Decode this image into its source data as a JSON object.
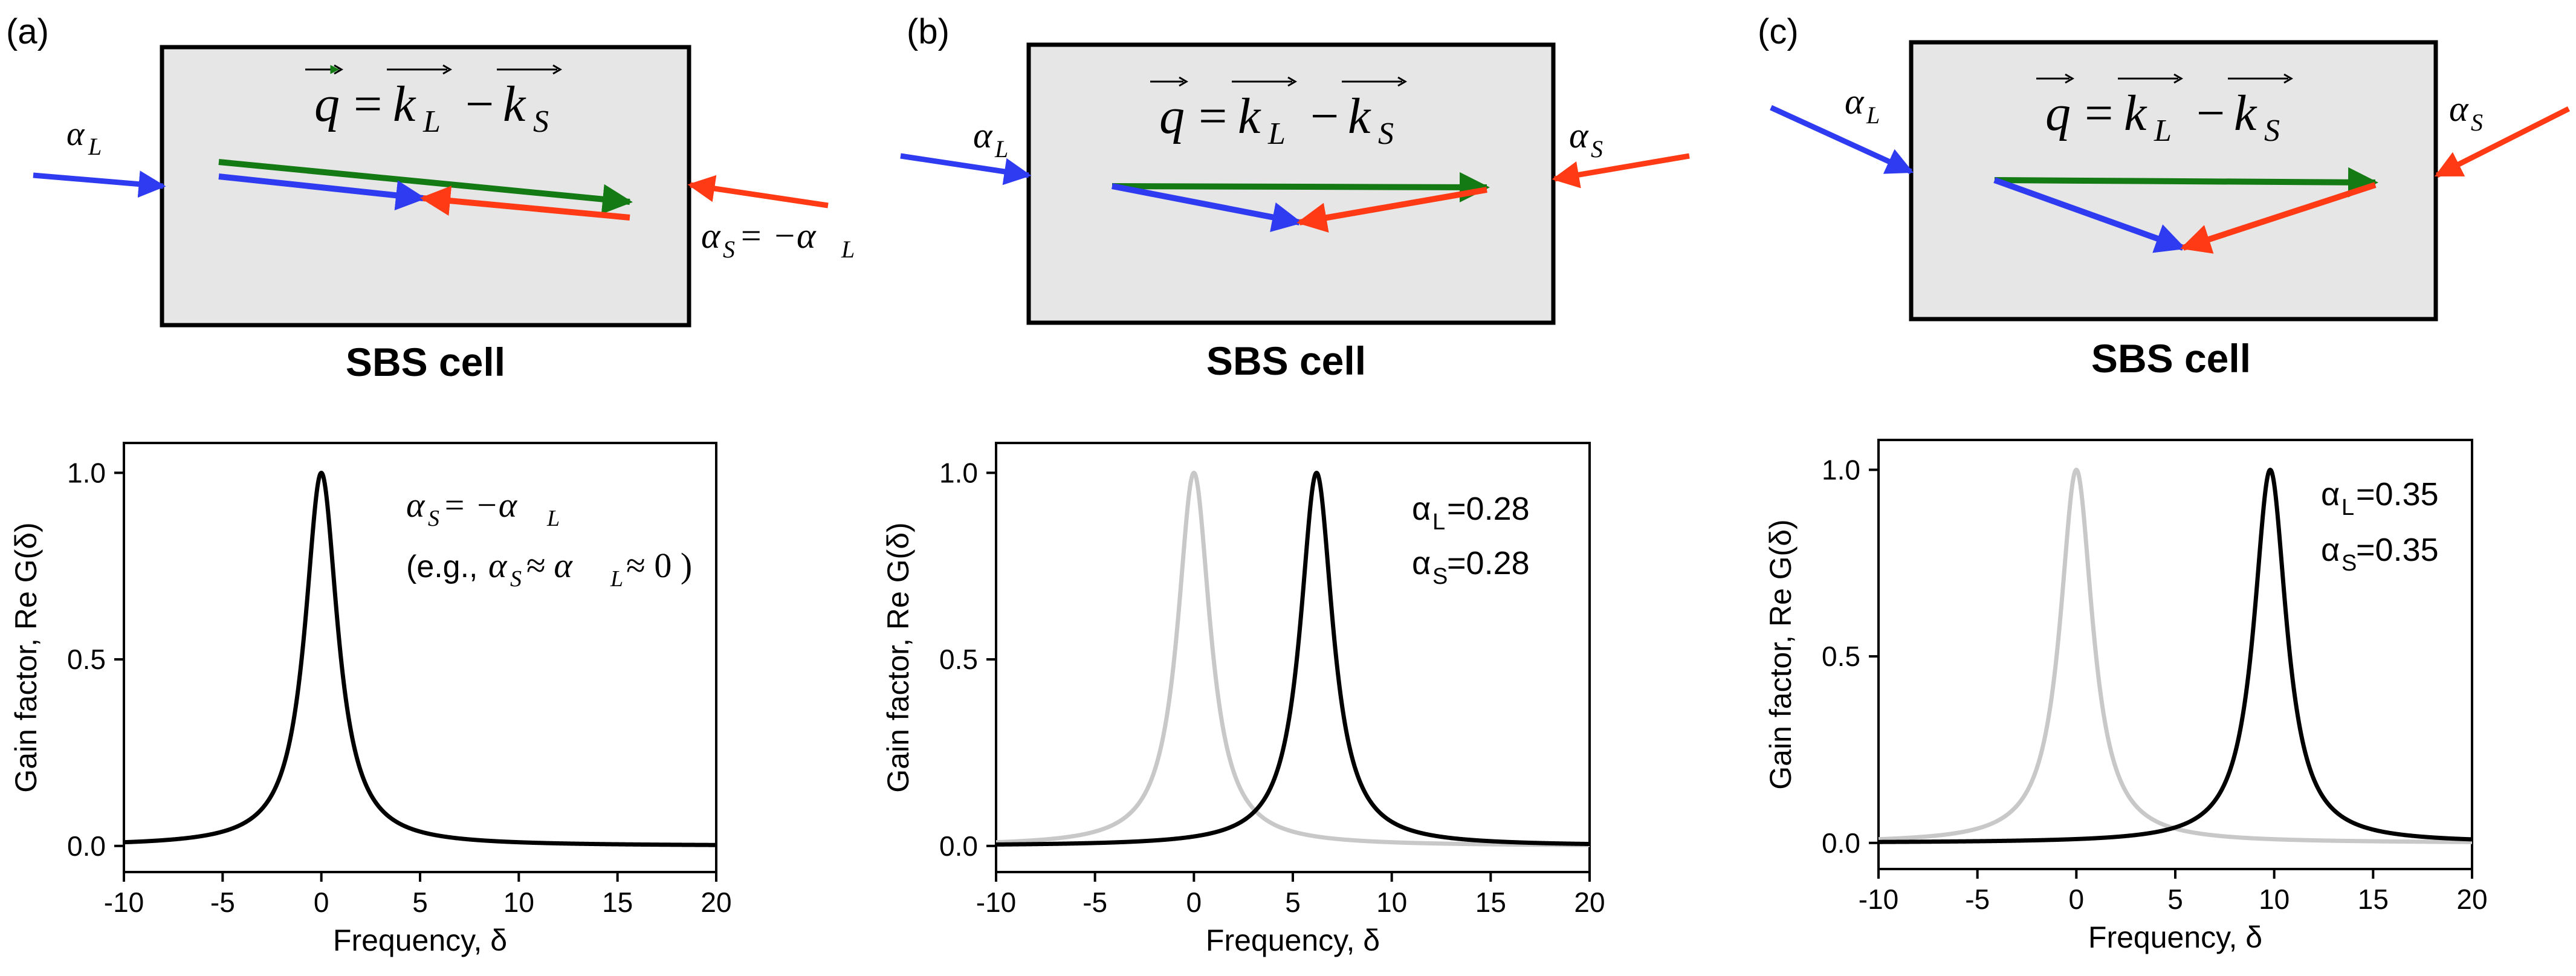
{
  "figure": {
    "colors": {
      "laser": "#2f3bf0",
      "stokes": "#ff3a14",
      "acoustic": "#147a14",
      "cell_fill": "#e6e6e6",
      "curve_reference": "#c8c8c8",
      "curve_main": "#000000"
    },
    "shared": {
      "cell_caption": "SBS cell",
      "equation": {
        "q": "q",
        "k": "k",
        "sub_L": "L",
        "sub_S": "S",
        "equals": "=",
        "minus": "−"
      },
      "alpha_symbol": "α",
      "ylabel": "Gain factor, Re G(δ)",
      "xlabel": "Frequency, δ"
    },
    "panels": [
      {
        "label": "(a)",
        "diagram": {
          "alpha_L": {
            "sym": "α",
            "sub": "L"
          },
          "alpha_S": {
            "sym": "α",
            "sub": "S",
            "eq": " = −α",
            "eq_sub": "L"
          }
        },
        "annotation": {
          "line1": {
            "sym": "α",
            "sub": "S",
            "mid": " = −α",
            "sub2": "L"
          },
          "line2": {
            "open": "(e.g.,",
            "a1": "α",
            "s1": "S",
            "approx1": " ≈ α",
            "s2": "L",
            "approx2": " ≈ 0 )"
          }
        }
      },
      {
        "label": "(b)",
        "diagram": {
          "alpha_L": {
            "sym": "α",
            "sub": "L"
          },
          "alpha_S": {
            "sym": "α",
            "sub": "S"
          }
        },
        "annotation": {
          "l1_sym": "α",
          "l1_sub": "L",
          "l1_val": "=0.28",
          "l2_sym": "α",
          "l2_sub": "S",
          "l2_val": "=0.28"
        }
      },
      {
        "label": "(c)",
        "diagram": {
          "alpha_L": {
            "sym": "α",
            "sub": "L"
          },
          "alpha_S": {
            "sym": "α",
            "sub": "S"
          }
        },
        "annotation": {
          "l1_sym": "α",
          "l1_sub": "L",
          "l1_val": "=0.35",
          "l2_sym": "α",
          "l2_sub": "S",
          "l2_val": "=0.35"
        }
      }
    ]
  },
  "chart_data": [
    {
      "type": "line",
      "title": "",
      "xlabel": "Frequency, δ",
      "ylabel": "Gain factor, Re G(δ)",
      "xlim": [
        -10,
        20
      ],
      "ylim": [
        -0.07,
        1.08
      ],
      "xticks": [
        -10,
        -5,
        0,
        5,
        10,
        15,
        20
      ],
      "yticks": [
        0.0,
        0.5,
        1.0
      ],
      "xtick_labels": [
        "-10",
        "-5",
        "0",
        "5",
        "10",
        "15",
        "20"
      ],
      "ytick_labels": [
        "0.0",
        "0.5",
        "1.0"
      ],
      "series": [
        {
          "name": "Re G(δ)",
          "shape": "lorentzian",
          "center": 0,
          "hwhm": 1.0,
          "peak": 1.0,
          "color": "#000000"
        }
      ]
    },
    {
      "type": "line",
      "title": "",
      "xlabel": "Frequency, δ",
      "ylabel": "Gain factor, Re G(δ)",
      "xlim": [
        -10,
        20
      ],
      "ylim": [
        -0.07,
        1.08
      ],
      "xticks": [
        -10,
        -5,
        0,
        5,
        10,
        15,
        20
      ],
      "yticks": [
        0.0,
        0.5,
        1.0
      ],
      "xtick_labels": [
        "-10",
        "-5",
        "0",
        "5",
        "10",
        "15",
        "20"
      ],
      "ytick_labels": [
        "0.0",
        "0.5",
        "1.0"
      ],
      "series": [
        {
          "name": "reference (α=0)",
          "shape": "lorentzian",
          "center": 0,
          "hwhm": 1.0,
          "peak": 1.0,
          "color": "#c8c8c8"
        },
        {
          "name": "α_L=0.28, α_S=0.28",
          "shape": "lorentzian",
          "center": 6.2,
          "hwhm": 1.0,
          "peak": 1.0,
          "color": "#000000"
        }
      ]
    },
    {
      "type": "line",
      "title": "",
      "xlabel": "Frequency, δ",
      "ylabel": "Gain factor, Re G(δ)",
      "xlim": [
        -10,
        20
      ],
      "ylim": [
        -0.07,
        1.08
      ],
      "xticks": [
        -10,
        -5,
        0,
        5,
        10,
        15,
        20
      ],
      "yticks": [
        0.0,
        0.5,
        1.0
      ],
      "xtick_labels": [
        "-10",
        "-5",
        "0",
        "5",
        "10",
        "15",
        "20"
      ],
      "ytick_labels": [
        "0.0",
        "0.5",
        "1.0"
      ],
      "series": [
        {
          "name": "reference (α=0)",
          "shape": "lorentzian",
          "center": 0,
          "hwhm": 1.0,
          "peak": 1.0,
          "color": "#c8c8c8"
        },
        {
          "name": "α_L=0.35, α_S=0.35",
          "shape": "lorentzian",
          "center": 9.8,
          "hwhm": 1.0,
          "peak": 1.0,
          "color": "#000000"
        }
      ]
    }
  ]
}
